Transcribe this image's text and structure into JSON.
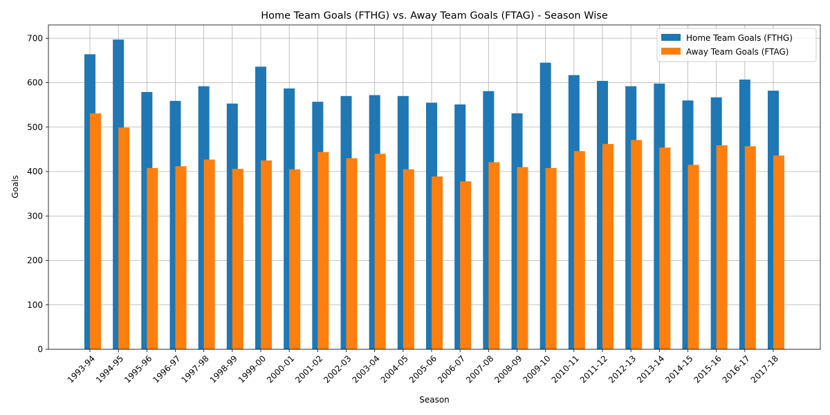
{
  "chart_data": {
    "type": "bar",
    "title": "Home Team Goals (FTHG) vs. Away Team Goals (FTAG) - Season Wise",
    "xlabel": "Season",
    "ylabel": "Goals",
    "ylim": [
      0,
      730
    ],
    "yticks": [
      0,
      100,
      200,
      300,
      400,
      500,
      600,
      700
    ],
    "grid": true,
    "legend_position": "top-right",
    "categories": [
      "1993-94",
      "1994-95",
      "1995-96",
      "1996-97",
      "1997-98",
      "1998-99",
      "1999-00",
      "2000-01",
      "2001-02",
      "2002-03",
      "2003-04",
      "2004-05",
      "2005-06",
      "2006-07",
      "2007-08",
      "2008-09",
      "2009-10",
      "2010-11",
      "2011-12",
      "2012-13",
      "2013-14",
      "2014-15",
      "2015-16",
      "2016-17",
      "2017-18"
    ],
    "series": [
      {
        "name": "Home Team Goals (FTHG)",
        "color": "#1f77b4",
        "values": [
          664,
          697,
          579,
          559,
          592,
          553,
          636,
          587,
          557,
          570,
          572,
          570,
          555,
          551,
          581,
          531,
          645,
          617,
          604,
          592,
          598,
          560,
          567,
          607,
          582
        ]
      },
      {
        "name": "Away Team Goals (FTAG)",
        "color": "#ff7f0e",
        "values": [
          531,
          499,
          408,
          412,
          427,
          406,
          425,
          405,
          444,
          430,
          440,
          405,
          389,
          378,
          421,
          410,
          408,
          446,
          462,
          471,
          454,
          415,
          459,
          457,
          436
        ]
      }
    ]
  }
}
